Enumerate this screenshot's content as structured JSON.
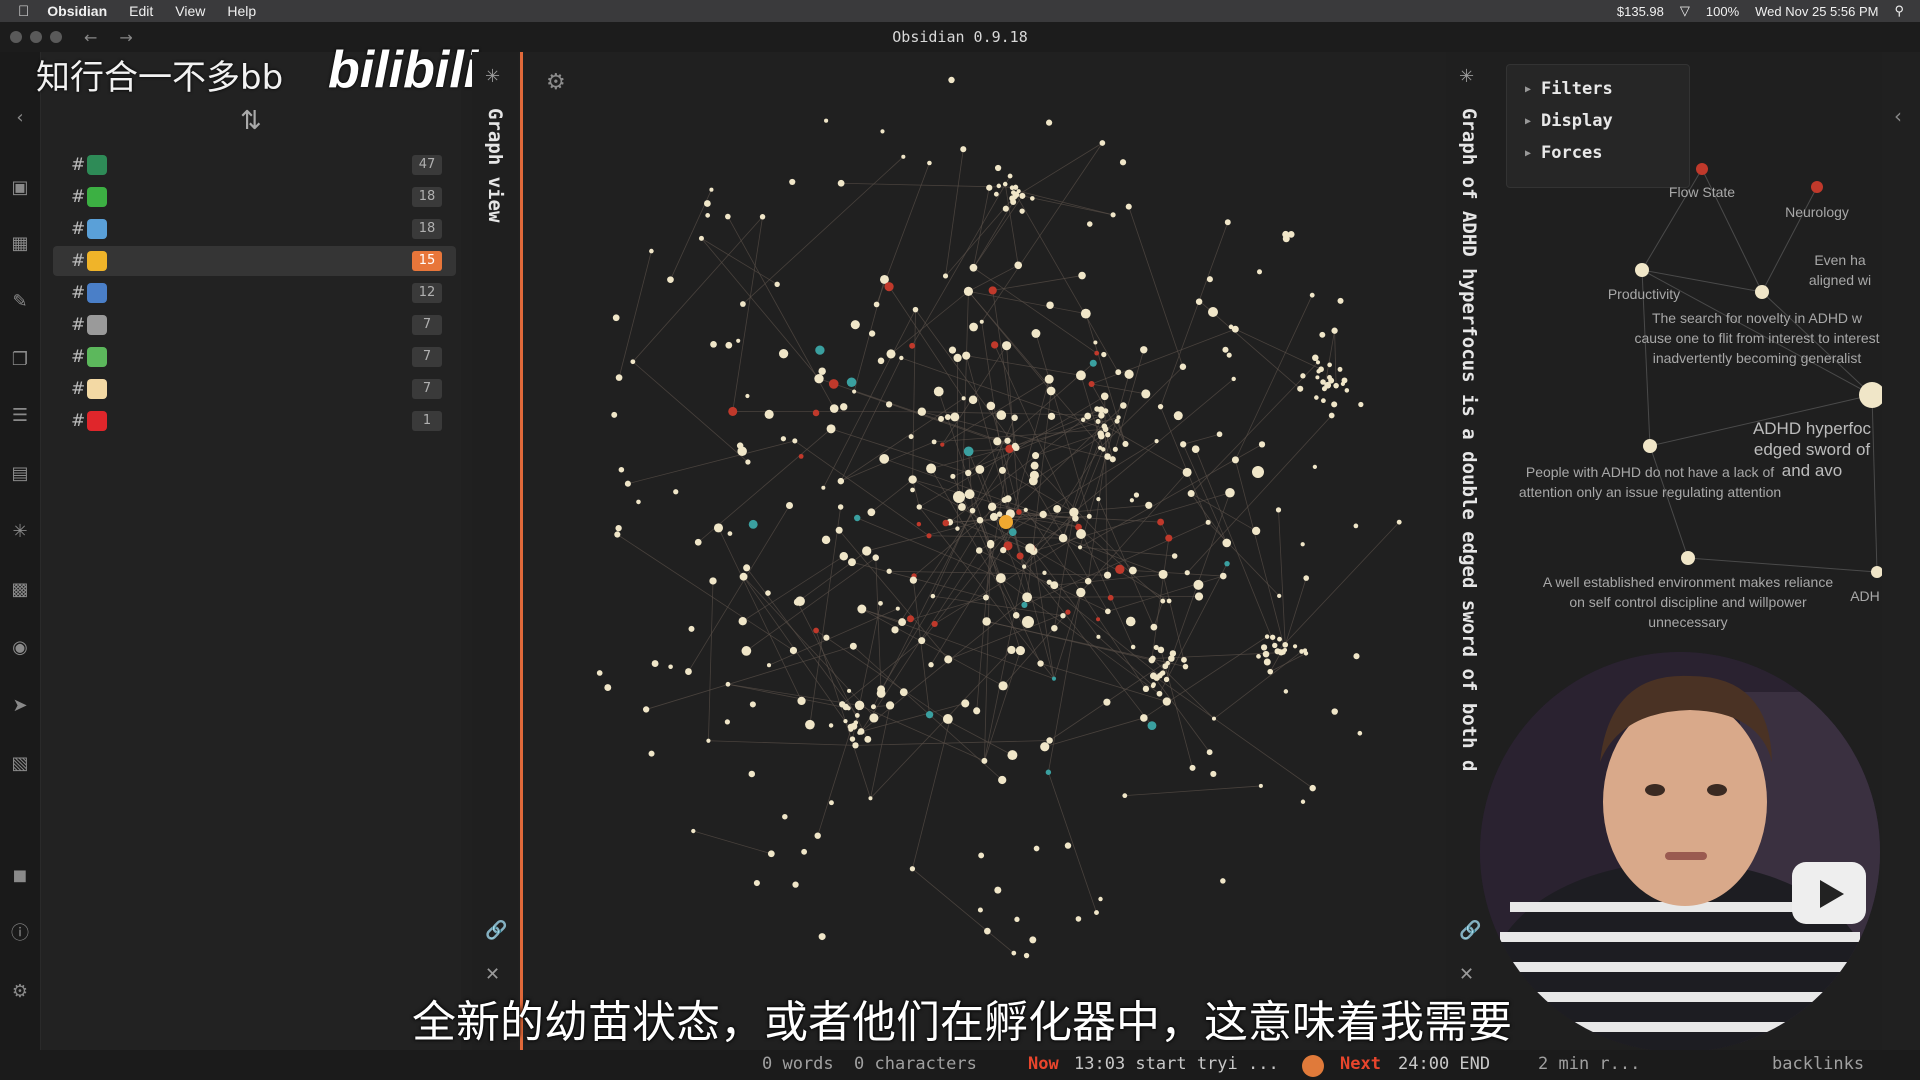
{
  "menubar": {
    "app": "Obsidian",
    "menus": [
      "Edit",
      "View",
      "Help"
    ],
    "status": [
      "$135.98",
      "100%",
      "Wed Nov 25  5:56 PM"
    ]
  },
  "window": {
    "title": "Obsidian 0.9.18"
  },
  "watermark": {
    "text": "知行合一不多bb",
    "logo": "bilibili"
  },
  "tags": [
    {
      "emoji_color": "#2e8b57",
      "count": "47",
      "active": false
    },
    {
      "emoji_color": "#3cb043",
      "count": "18",
      "active": false
    },
    {
      "emoji_color": "#5aa0d8",
      "count": "18",
      "active": false
    },
    {
      "emoji_color": "#f0b429",
      "count": "15",
      "active": true
    },
    {
      "emoji_color": "#4a7fc8",
      "count": "12",
      "active": false
    },
    {
      "emoji_color": "#9a9a9a",
      "count": "7",
      "active": false
    },
    {
      "emoji_color": "#5cb85c",
      "count": "7",
      "active": false
    },
    {
      "emoji_color": "#f3d9a4",
      "count": "7",
      "active": false
    },
    {
      "emoji_color": "#e0262b",
      "count": "1",
      "active": false
    }
  ],
  "tag_prefix": "#",
  "graph_view": {
    "title": "Graph view"
  },
  "local_graph": {
    "title": "Graph of ADHD hyperfocus is a double edged sword of both d",
    "panel": [
      "Filters",
      "Display",
      "Forces"
    ],
    "labels": [
      "Flow State",
      "Neurology",
      "Even ha aligned wi",
      "Productivity",
      "The search for novelty in ADHD w cause one to flit from interest to interest inadvertently becoming generalist",
      "ADHD hyperfoc edged sword of and avo",
      "People with ADHD do not have a lack of attention only an issue regulating attention",
      "A well established environment makes reliance on self control discipline and willpower unnecessary",
      "ADH"
    ]
  },
  "statusbar": {
    "words": "0 words",
    "characters": "0 characters",
    "now_label": "Now",
    "now_text": "13:03 start tryi ...",
    "next_label": "Next",
    "next_text": "24:00 END",
    "remaining": "2 min r...",
    "backlinks": "backlinks"
  },
  "subtitle": "全新的幼苗状态，或者他们在孵化器中，这意味着我需要",
  "colors": {
    "accent": "#e0693a",
    "node": "#f0e6c8",
    "node_highlight": "#f0a830",
    "node_red": "#c0392b",
    "node_teal": "#3aa0a0"
  }
}
